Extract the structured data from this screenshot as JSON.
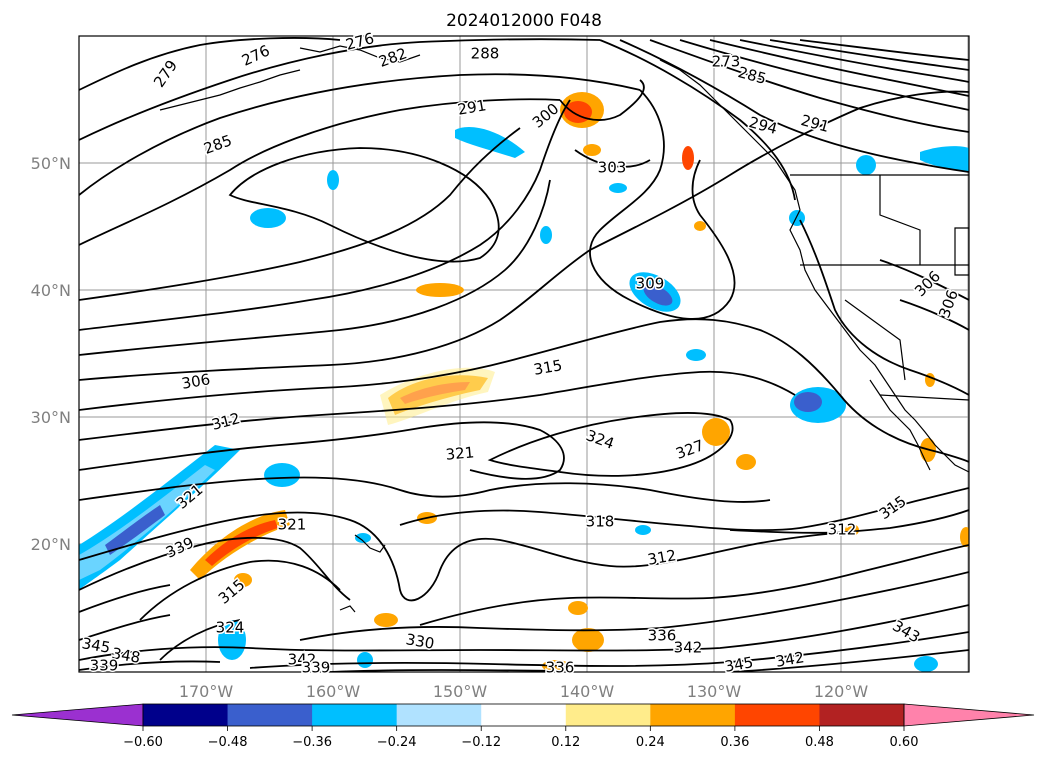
{
  "title": "2024012000 F048",
  "map": {
    "lat_labels": [
      {
        "text": "50°N",
        "lat": 50
      },
      {
        "text": "40°N",
        "lat": 40
      },
      {
        "text": "30°N",
        "lat": 30
      },
      {
        "text": "20°N",
        "lat": 20
      }
    ],
    "lon_labels": [
      {
        "text": "170°W",
        "lon": -170
      },
      {
        "text": "160°W",
        "lon": -160
      },
      {
        "text": "150°W",
        "lon": -150
      },
      {
        "text": "140°W",
        "lon": -140
      },
      {
        "text": "130°W",
        "lon": -130
      },
      {
        "text": "120°W",
        "lon": -120
      }
    ],
    "contour_labels": [
      "279",
      "276",
      "276",
      "282",
      "288",
      "291",
      "285",
      "300",
      "303",
      "273",
      "285",
      "294",
      "291",
      "309",
      "306",
      "306",
      "315",
      "306",
      "312",
      "324",
      "321",
      "327",
      "321",
      "318",
      "312",
      "312",
      "315",
      "339",
      "321",
      "315",
      "324",
      "330",
      "336",
      "342",
      "345",
      "342",
      "343",
      "345",
      "348",
      "339",
      "336",
      "342",
      "339"
    ]
  },
  "colorbar": {
    "tick_labels": [
      "−0.60",
      "−0.48",
      "−0.36",
      "−0.24",
      "−0.12",
      "0.12",
      "0.24",
      "0.36",
      "0.48",
      "0.60"
    ],
    "colors": [
      "#9b30d0",
      "#00008b",
      "#3a5fcd",
      "#00bfff",
      "#b0e2ff",
      "#ffffff",
      "#ffec8b",
      "#ffa500",
      "#ff4500",
      "#b22222",
      "#ff82ab"
    ]
  }
}
